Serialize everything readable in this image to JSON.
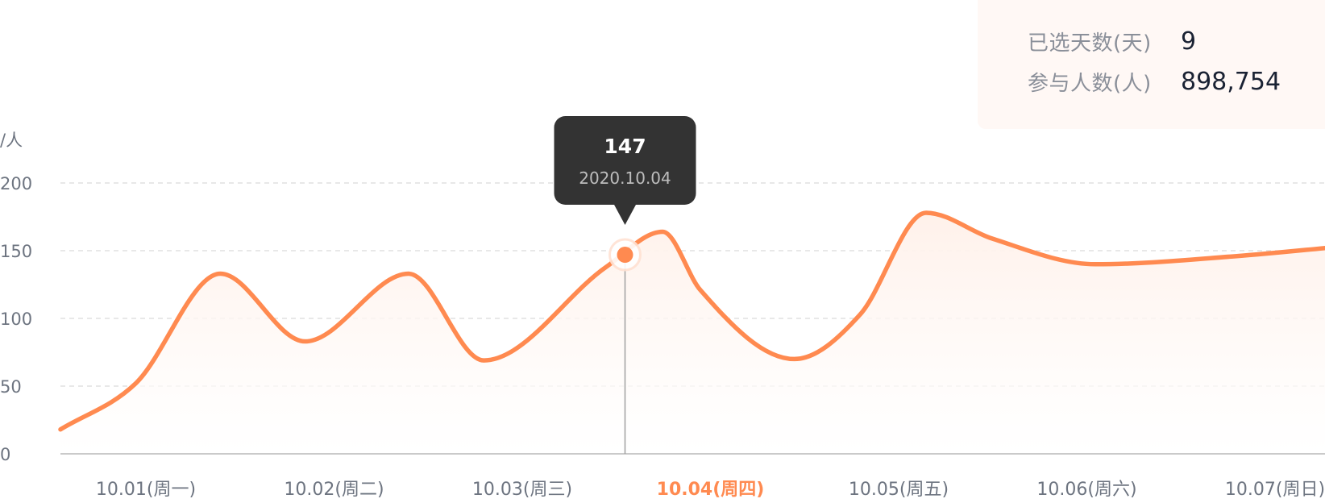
{
  "summary": {
    "days_label": "已选天数(天)",
    "days_value": "9",
    "people_label": "参与人数(人)",
    "people_value": "898,754"
  },
  "tooltip": {
    "value": "147",
    "date": "2020.10.04"
  },
  "colors": {
    "line": "#ff8a50",
    "area": "#fff1ea",
    "grid": "#d9d9d9",
    "tooltip_bg": "#333333",
    "active_label": "#ff8a50"
  },
  "chart_data": {
    "type": "area",
    "ylabel": "/人",
    "yticks": [
      0,
      50,
      100,
      150,
      200
    ],
    "ylim": [
      0,
      200
    ],
    "grid": true,
    "categories": [
      "10.01(周一)",
      "10.02(周二)",
      "10.03(周三)",
      "10.04(周四)",
      "10.05(周五)",
      "10.06(周六)",
      "10.07(周日)"
    ],
    "active_category": 3,
    "x": [
      0.0,
      0.4,
      0.85,
      1.3,
      1.85,
      2.25,
      2.9,
      3.2,
      3.4,
      3.9,
      4.25,
      4.6,
      4.95,
      5.5,
      6.25,
      6.8
    ],
    "y": [
      18,
      52,
      133,
      83,
      133,
      69,
      138,
      164,
      121,
      70,
      103,
      178,
      159,
      140,
      146,
      153
    ],
    "highlight": {
      "x": 3.0,
      "y": 147
    }
  }
}
